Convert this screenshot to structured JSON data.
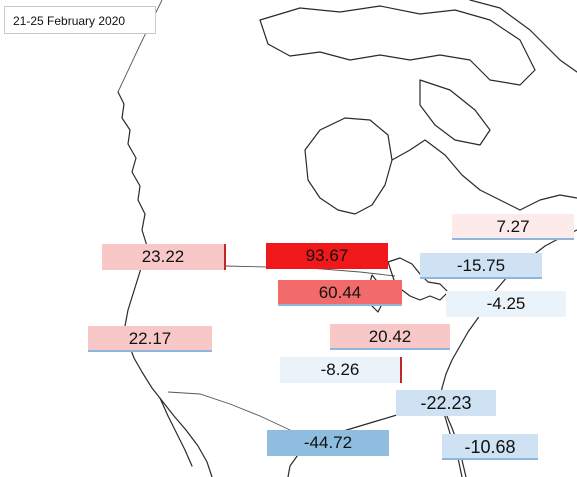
{
  "title": "21-25  February 2020",
  "colors": {
    "strong_positive": "#f01818",
    "medium_positive": "#f26a6a",
    "light_positive": "#f8c8c8",
    "faint_positive": "#fdeaea",
    "faint_negative": "#eaf2fa",
    "light_negative": "#cfe2f3",
    "strong_negative": "#8fbde0"
  },
  "regions": [
    {
      "id": "northeast",
      "value": "7.27"
    },
    {
      "id": "northern-plains",
      "value": "23.22"
    },
    {
      "id": "upper-midwest",
      "value": "93.67"
    },
    {
      "id": "great-lakes",
      "value": "60.44"
    },
    {
      "id": "ohio-valley",
      "value": "-15.75"
    },
    {
      "id": "mid-atlantic",
      "value": "-4.25"
    },
    {
      "id": "west",
      "value": "22.17"
    },
    {
      "id": "central",
      "value": "20.42"
    },
    {
      "id": "south-central",
      "value": "-8.26"
    },
    {
      "id": "southeast",
      "value": "-22.23"
    },
    {
      "id": "south",
      "value": "-44.72"
    },
    {
      "id": "florida",
      "value": "-10.68"
    }
  ]
}
